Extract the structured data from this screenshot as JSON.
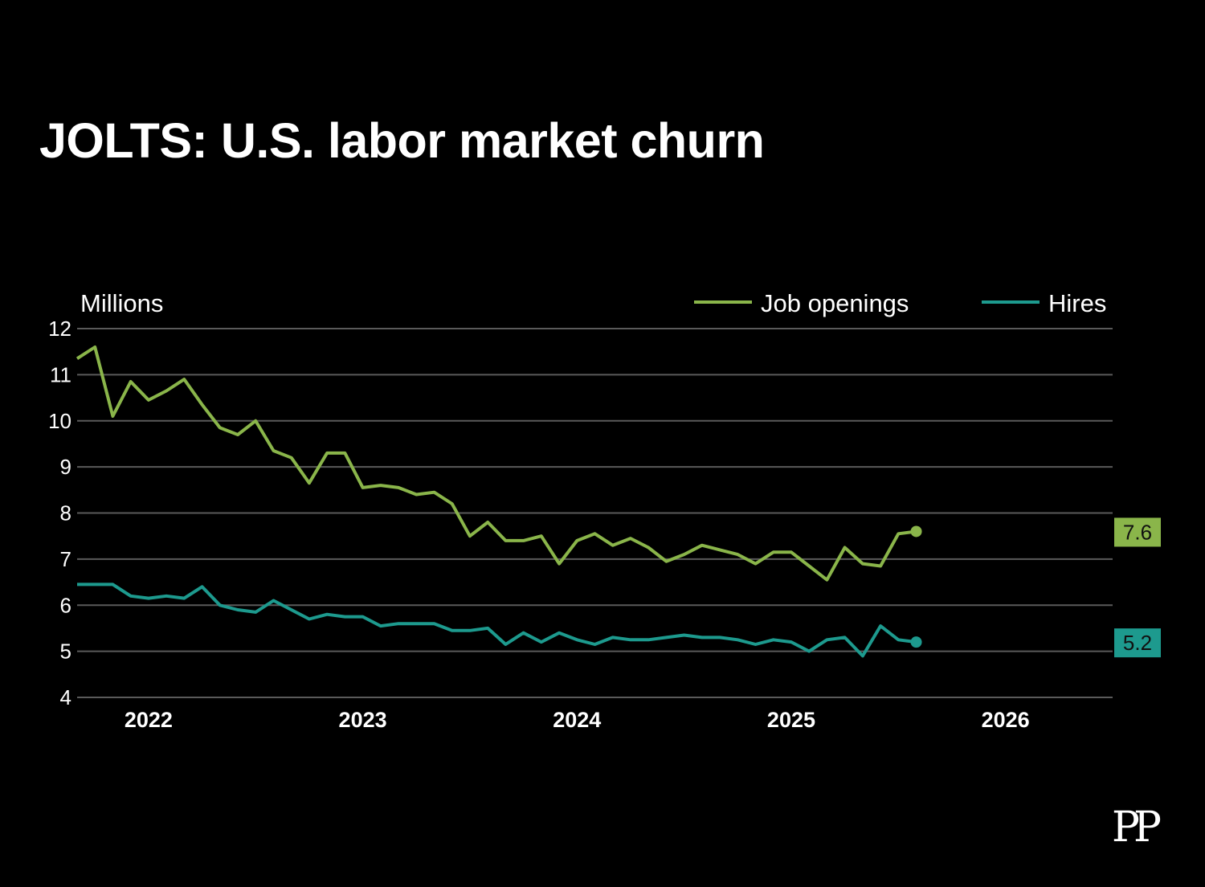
{
  "chart_data": {
    "type": "line",
    "title": "JOLTS: U.S. labor market churn",
    "ylabel": "Millions",
    "ylim": [
      4,
      12
    ],
    "yticks": [
      4,
      5,
      6,
      7,
      8,
      9,
      10,
      11,
      12
    ],
    "xlim": [
      "2021-09",
      "2026-07"
    ],
    "xticks": [
      {
        "date": "2022-01",
        "label": "2022"
      },
      {
        "date": "2023-01",
        "label": "2023"
      },
      {
        "date": "2024-01",
        "label": "2024"
      },
      {
        "date": "2025-01",
        "label": "2025"
      },
      {
        "date": "2026-01",
        "label": "2026"
      }
    ],
    "grid": true,
    "legend": "top-right",
    "series": [
      {
        "name": "Job openings",
        "color": "#8ab54a",
        "end_label": "7.6",
        "points": [
          [
            "2021-09",
            11.35
          ],
          [
            "2021-10",
            11.6
          ],
          [
            "2021-11",
            10.1
          ],
          [
            "2021-12",
            10.85
          ],
          [
            "2022-01",
            10.45
          ],
          [
            "2022-02",
            10.65
          ],
          [
            "2022-03",
            10.9
          ],
          [
            "2022-04",
            10.35
          ],
          [
            "2022-05",
            9.85
          ],
          [
            "2022-06",
            9.7
          ],
          [
            "2022-07",
            10.0
          ],
          [
            "2022-08",
            9.35
          ],
          [
            "2022-09",
            9.2
          ],
          [
            "2022-10",
            8.65
          ],
          [
            "2022-11",
            9.3
          ],
          [
            "2022-12",
            9.3
          ],
          [
            "2023-01",
            8.55
          ],
          [
            "2023-02",
            8.6
          ],
          [
            "2023-03",
            8.55
          ],
          [
            "2023-04",
            8.4
          ],
          [
            "2023-05",
            8.45
          ],
          [
            "2023-06",
            8.2
          ],
          [
            "2023-07",
            7.5
          ],
          [
            "2023-08",
            7.8
          ],
          [
            "2023-09",
            7.4
          ],
          [
            "2023-10",
            7.4
          ],
          [
            "2023-11",
            7.5
          ],
          [
            "2023-12",
            6.9
          ],
          [
            "2024-01",
            7.4
          ],
          [
            "2024-02",
            7.55
          ],
          [
            "2024-03",
            7.3
          ],
          [
            "2024-04",
            7.45
          ],
          [
            "2024-05",
            7.25
          ],
          [
            "2024-06",
            6.95
          ],
          [
            "2024-07",
            7.1
          ],
          [
            "2024-08",
            7.3
          ],
          [
            "2024-09",
            7.2
          ],
          [
            "2024-10",
            7.1
          ],
          [
            "2024-11",
            6.9
          ],
          [
            "2024-12",
            7.15
          ],
          [
            "2025-01",
            7.15
          ],
          [
            "2025-02",
            6.85
          ],
          [
            "2025-03",
            6.55
          ],
          [
            "2025-04",
            7.25
          ],
          [
            "2025-05",
            6.9
          ],
          [
            "2025-06",
            6.85
          ],
          [
            "2025-07",
            7.55
          ],
          [
            "2025-08",
            7.6
          ]
        ]
      },
      {
        "name": "Hires",
        "color": "#1d9a8e",
        "end_label": "5.2",
        "points": [
          [
            "2021-09",
            6.45
          ],
          [
            "2021-10",
            6.45
          ],
          [
            "2021-11",
            6.45
          ],
          [
            "2021-12",
            6.2
          ],
          [
            "2022-01",
            6.15
          ],
          [
            "2022-02",
            6.2
          ],
          [
            "2022-03",
            6.15
          ],
          [
            "2022-04",
            6.4
          ],
          [
            "2022-05",
            6.0
          ],
          [
            "2022-06",
            5.9
          ],
          [
            "2022-07",
            5.85
          ],
          [
            "2022-08",
            6.1
          ],
          [
            "2022-09",
            5.9
          ],
          [
            "2022-10",
            5.7
          ],
          [
            "2022-11",
            5.8
          ],
          [
            "2022-12",
            5.75
          ],
          [
            "2023-01",
            5.75
          ],
          [
            "2023-02",
            5.55
          ],
          [
            "2023-03",
            5.6
          ],
          [
            "2023-04",
            5.6
          ],
          [
            "2023-05",
            5.6
          ],
          [
            "2023-06",
            5.45
          ],
          [
            "2023-07",
            5.45
          ],
          [
            "2023-08",
            5.5
          ],
          [
            "2023-09",
            5.15
          ],
          [
            "2023-10",
            5.4
          ],
          [
            "2023-11",
            5.2
          ],
          [
            "2023-12",
            5.4
          ],
          [
            "2024-01",
            5.25
          ],
          [
            "2024-02",
            5.15
          ],
          [
            "2024-03",
            5.3
          ],
          [
            "2024-04",
            5.25
          ],
          [
            "2024-05",
            5.25
          ],
          [
            "2024-06",
            5.3
          ],
          [
            "2024-07",
            5.35
          ],
          [
            "2024-08",
            5.3
          ],
          [
            "2024-09",
            5.3
          ],
          [
            "2024-10",
            5.25
          ],
          [
            "2024-11",
            5.15
          ],
          [
            "2024-12",
            5.25
          ],
          [
            "2025-01",
            5.2
          ],
          [
            "2025-02",
            5.0
          ],
          [
            "2025-03",
            5.25
          ],
          [
            "2025-04",
            5.3
          ],
          [
            "2025-05",
            4.9
          ],
          [
            "2025-06",
            5.55
          ],
          [
            "2025-07",
            5.25
          ],
          [
            "2025-08",
            5.2
          ]
        ]
      }
    ]
  },
  "branding": {
    "mark": "PP"
  }
}
